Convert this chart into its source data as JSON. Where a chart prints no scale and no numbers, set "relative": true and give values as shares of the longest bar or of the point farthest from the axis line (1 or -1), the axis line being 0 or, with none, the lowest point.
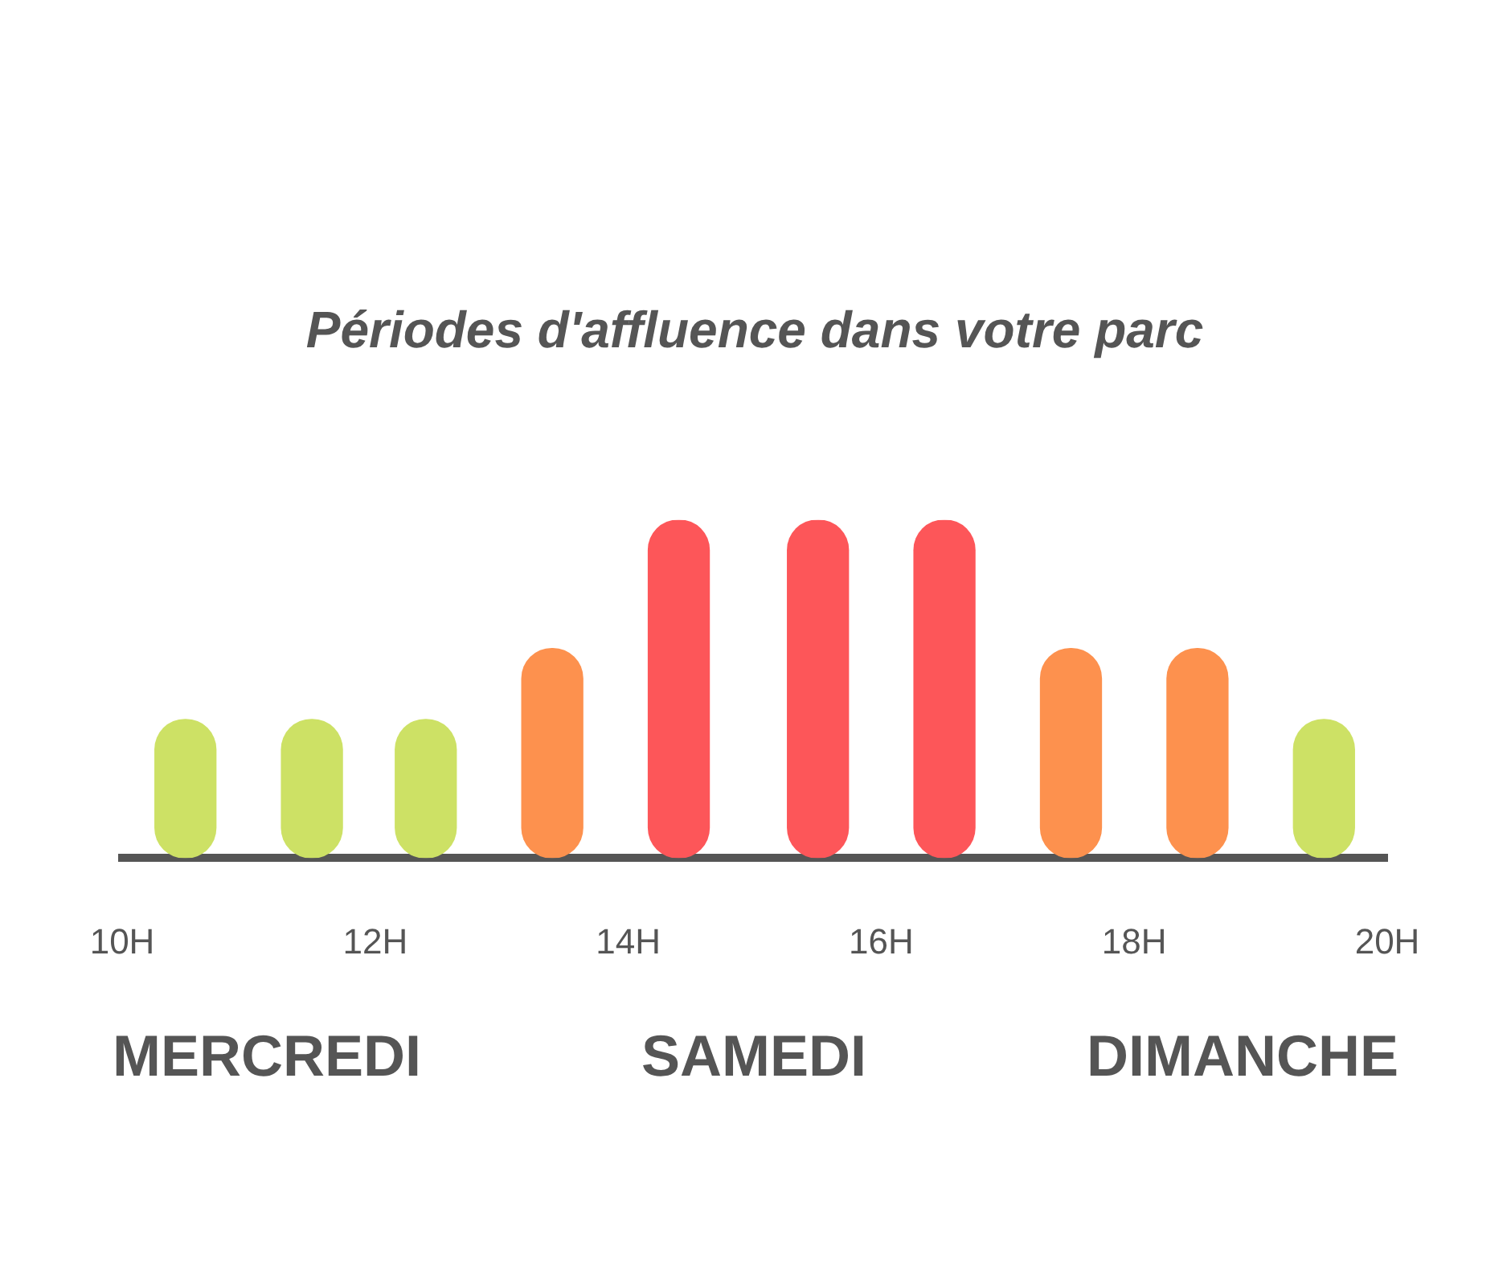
{
  "chart_data": {
    "type": "bar",
    "title": "Périodes d'affluence dans votre parc",
    "relative": true,
    "grid": false,
    "legend": false,
    "x": [
      10.5,
      11.5,
      12.4,
      13.4,
      14.4,
      15.5,
      16.5,
      17.5,
      18.5,
      19.5
    ],
    "values": [
      0.41,
      0.41,
      0.41,
      0.62,
      1,
      1,
      1,
      0.62,
      0.62,
      0.41
    ],
    "colors": [
      "#cde165",
      "#cde165",
      "#cde165",
      "#fd914e",
      "#fd5659",
      "#fd5659",
      "#fd5659",
      "#fd914e",
      "#fd914e",
      "#cde165"
    ],
    "xlim": [
      10,
      20
    ],
    "xticks": [
      {
        "value": 10,
        "label": "10H"
      },
      {
        "value": 12,
        "label": "12H"
      },
      {
        "value": 14,
        "label": "14H"
      },
      {
        "value": 16,
        "label": "16H"
      },
      {
        "value": 18,
        "label": "18H"
      },
      {
        "value": 20,
        "label": "20H"
      }
    ],
    "annotations": [
      "MERCREDI",
      "SAMEDI",
      "DIMANCHE"
    ]
  }
}
